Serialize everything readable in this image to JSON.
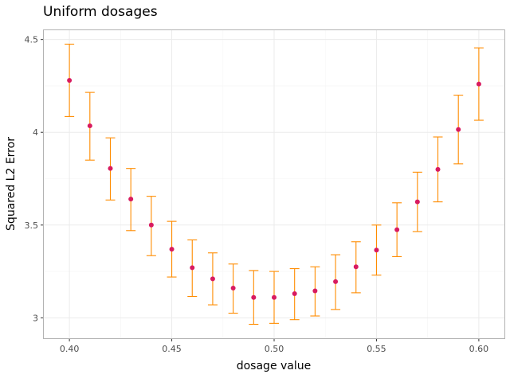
{
  "chart_data": {
    "type": "scatter",
    "title": "Uniform dosages",
    "xlabel": "dosage value",
    "ylabel": "Squared L2 Error",
    "xlim": [
      0.3875,
      0.6125
    ],
    "ylim": [
      2.89,
      4.55
    ],
    "x_ticks": [
      0.4,
      0.45,
      0.5,
      0.55,
      0.6
    ],
    "x_tick_labels": [
      "0.40",
      "0.45",
      "0.50",
      "0.55",
      "0.60"
    ],
    "y_ticks": [
      3.0,
      3.5,
      4.0,
      4.5
    ],
    "y_tick_labels": [
      "3",
      "3.5",
      "4",
      "4.5"
    ],
    "grid": true,
    "point_color": "#d81b60",
    "errorbar_color": "#ff8c00",
    "x": [
      0.4,
      0.41,
      0.42,
      0.43,
      0.44,
      0.45,
      0.46,
      0.47,
      0.48,
      0.49,
      0.5,
      0.51,
      0.52,
      0.53,
      0.54,
      0.55,
      0.56,
      0.57,
      0.58,
      0.59,
      0.6
    ],
    "y": [
      4.28,
      4.035,
      3.805,
      3.64,
      3.5,
      3.37,
      3.27,
      3.21,
      3.16,
      3.11,
      3.11,
      3.13,
      3.145,
      3.195,
      3.275,
      3.365,
      3.475,
      3.625,
      3.8,
      4.015,
      4.26
    ],
    "y_lower": [
      4.085,
      3.85,
      3.635,
      3.47,
      3.335,
      3.22,
      3.115,
      3.07,
      3.025,
      2.965,
      2.97,
      2.99,
      3.01,
      3.045,
      3.135,
      3.23,
      3.33,
      3.465,
      3.625,
      3.83,
      4.065
    ],
    "y_upper": [
      4.475,
      4.215,
      3.97,
      3.805,
      3.655,
      3.52,
      3.42,
      3.35,
      3.29,
      3.255,
      3.25,
      3.265,
      3.275,
      3.34,
      3.41,
      3.5,
      3.62,
      3.785,
      3.975,
      4.2,
      4.455
    ]
  }
}
